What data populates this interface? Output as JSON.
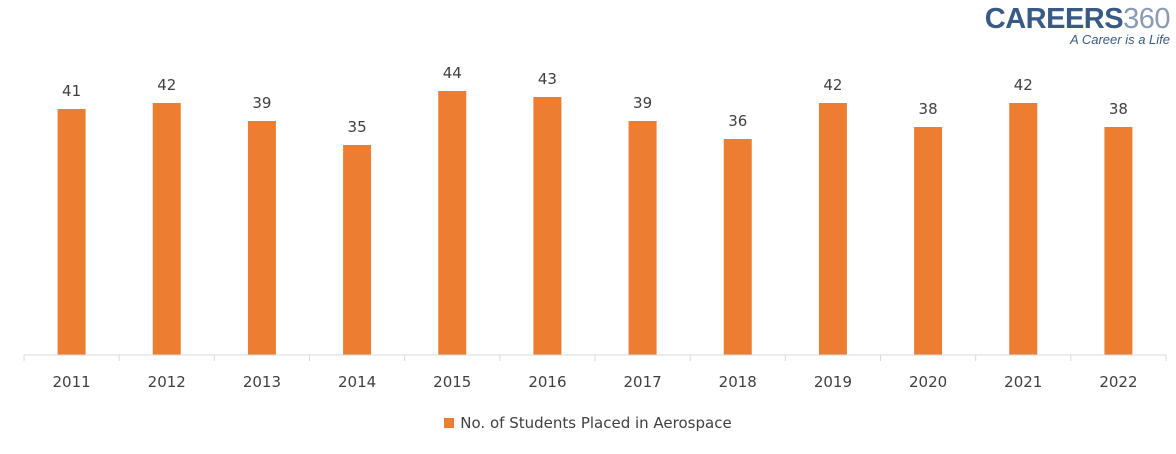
{
  "logo": {
    "word": "CAREERS",
    "number": "360",
    "tagline": "A Career is a Life"
  },
  "chart_data": {
    "type": "bar",
    "categories": [
      "2011",
      "2012",
      "2013",
      "2014",
      "2015",
      "2016",
      "2017",
      "2018",
      "2019",
      "2020",
      "2021",
      "2022"
    ],
    "series": [
      {
        "name": "No. of Students Placed in Aerospace",
        "values": [
          41,
          42,
          39,
          35,
          44,
          43,
          39,
          36,
          42,
          38,
          42,
          38
        ]
      }
    ],
    "ylim": [
      0,
      44
    ],
    "grid": false,
    "data_labels": true,
    "legend_position": "bottom",
    "colors": {
      "bar": "#ed7d31"
    }
  }
}
